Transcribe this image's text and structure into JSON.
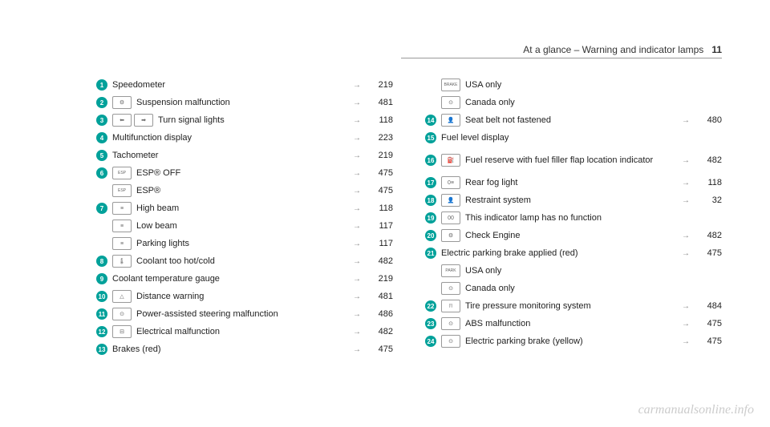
{
  "header": {
    "title_prefix": "At a glance – ",
    "title_main": "Warning and indicator lamps",
    "page_num": "11"
  },
  "left": [
    {
      "n": "1",
      "icon": null,
      "label": "Speedometer",
      "page": "219"
    },
    {
      "n": "2",
      "icon": "⚙",
      "label": "Suspension malfunction",
      "page": "481"
    },
    {
      "n": "3",
      "icon2": [
        "⬅",
        "➡"
      ],
      "label": "Turn signal lights",
      "page": "118"
    },
    {
      "n": "4",
      "icon": null,
      "label": "Multifunction display",
      "page": "223"
    },
    {
      "n": "5",
      "icon": null,
      "label": "Tachometer",
      "page": "219"
    },
    {
      "n": "6",
      "icon": "ESP",
      "label": "ESP® OFF",
      "page": "475"
    },
    {
      "n": null,
      "icon": "ESP",
      "label": "ESP®",
      "page": "475"
    },
    {
      "n": "7",
      "icon": "≡",
      "label": "High beam",
      "page": "118"
    },
    {
      "n": null,
      "icon": "≡",
      "label": "Low beam",
      "page": "117"
    },
    {
      "n": null,
      "icon": "≡",
      "label": "Parking lights",
      "page": "117"
    },
    {
      "n": "8",
      "icon": "🌡",
      "label": "Coolant too hot/cold",
      "page": "482"
    },
    {
      "n": "9",
      "icon": null,
      "label": "Coolant temperature gauge",
      "page": "219"
    },
    {
      "n": "10",
      "icon": "△",
      "label": "Distance warning",
      "page": "481"
    },
    {
      "n": "11",
      "icon": "⊙",
      "label": "Power-assisted steering malfunction",
      "page": "486"
    },
    {
      "n": "12",
      "icon": "⊟",
      "label": "Electrical malfunction",
      "page": "482"
    },
    {
      "n": "13",
      "icon": null,
      "label": "Brakes (red)",
      "page": "475"
    }
  ],
  "right": [
    {
      "n": null,
      "icon": "BRAKE",
      "label": "USA only",
      "page": null
    },
    {
      "n": null,
      "icon": "⊙",
      "label": "Canada only",
      "page": null
    },
    {
      "n": "14",
      "icon": "👤",
      "label": "Seat belt not fastened",
      "page": "480"
    },
    {
      "n": "15",
      "icon": null,
      "label": "Fuel level display",
      "page": null
    },
    {
      "n": "16",
      "icon": "⛽",
      "label": "Fuel reserve with fuel filler flap location indicator",
      "page": "482",
      "tall": true
    },
    {
      "n": "17",
      "icon": "0≡",
      "label": "Rear fog light",
      "page": "118"
    },
    {
      "n": "18",
      "icon": "👤",
      "label": "Restraint system",
      "page": "32"
    },
    {
      "n": "19",
      "icon": "00",
      "label": "This indicator lamp has no function",
      "page": null
    },
    {
      "n": "20",
      "icon": "⚙",
      "label": "Check Engine",
      "page": "482"
    },
    {
      "n": "21",
      "icon": null,
      "label": "Electric parking brake applied (red)",
      "page": "475"
    },
    {
      "n": null,
      "icon": "PARK",
      "label": "USA only",
      "page": null
    },
    {
      "n": null,
      "icon": "⊙",
      "label": "Canada only",
      "page": null
    },
    {
      "n": "22",
      "icon": "(!)",
      "label": "Tire pressure monitoring system",
      "page": "484"
    },
    {
      "n": "23",
      "icon": "⊙",
      "label": "ABS malfunction",
      "page": "475"
    },
    {
      "n": "24",
      "icon": "⊙",
      "label": "Electric parking brake (yellow)",
      "page": "475"
    }
  ],
  "watermark": "carmanualsonline.info",
  "arrow_symbol": "→"
}
